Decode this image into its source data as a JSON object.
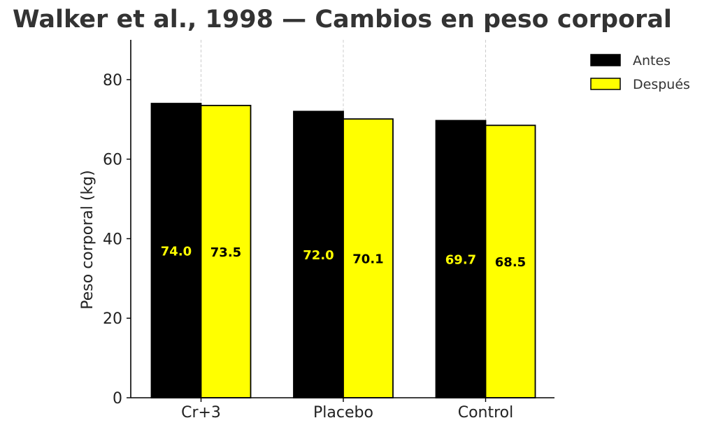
{
  "chart_data": {
    "type": "bar",
    "title": "Walker et al., 1998 — Cambios en peso corporal",
    "xlabel": "",
    "ylabel": "Peso corporal (kg)",
    "categories": [
      "Cr+3",
      "Placebo",
      "Control"
    ],
    "series": [
      {
        "name": "Antes",
        "values": [
          74.0,
          72.0,
          69.7
        ],
        "color": "#000000",
        "label_color": "#ffff00"
      },
      {
        "name": "Después",
        "values": [
          73.5,
          70.1,
          68.5
        ],
        "color": "#ffff00",
        "label_color": "#000000"
      }
    ],
    "value_labels": [
      [
        "74.0",
        "72.0",
        "69.7"
      ],
      [
        "73.5",
        "70.1",
        "68.5"
      ]
    ],
    "ylim": [
      0,
      90
    ],
    "yticks": [
      0,
      20,
      40,
      60,
      80
    ],
    "grid": "vertical dashed at categories",
    "legend": "top-right, outside plot"
  }
}
